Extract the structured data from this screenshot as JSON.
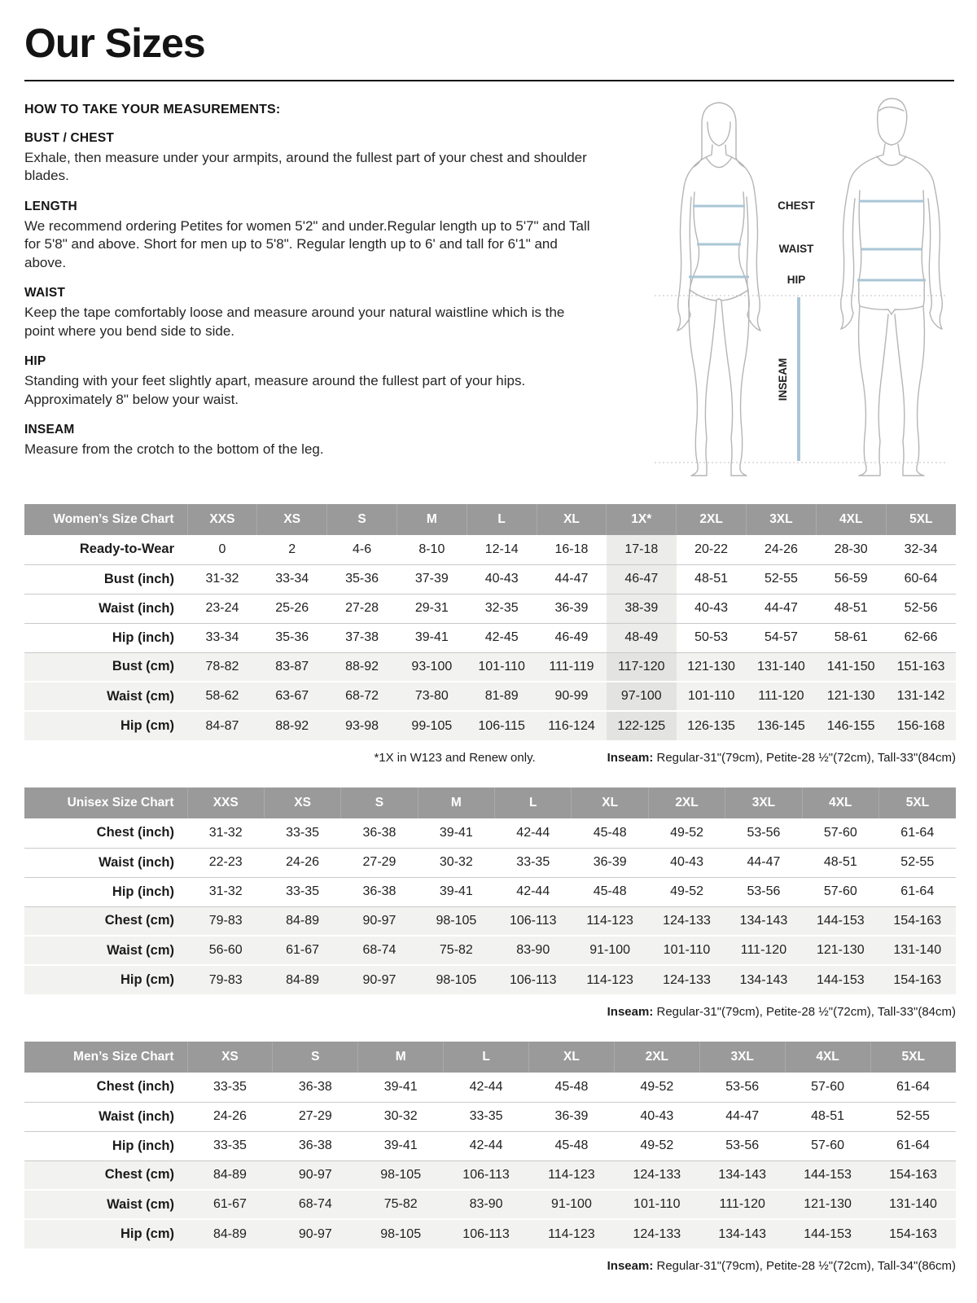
{
  "page": {
    "title": "Our Sizes"
  },
  "how_to": {
    "heading": "HOW TO TAKE YOUR MEASUREMENTS:",
    "sections": [
      {
        "heading": "BUST / CHEST",
        "body": "Exhale, then measure under your armpits, around the fullest part of your chest and shoulder blades."
      },
      {
        "heading": "LENGTH",
        "body": "We recommend ordering Petites for women 5'2\" and under.Regular length up to 5'7\" and Tall for 5'8\" and above. Short for men up to 5'8\". Regular length up to 6' and tall for 6'1\" and above."
      },
      {
        "heading": "WAIST",
        "body": "Keep the tape comfortably loose and measure around your natural waistline which is the point where you bend side to side."
      },
      {
        "heading": "HIP",
        "body": "Standing with your feet slightly apart, measure around the fullest part of your hips. Approximately 8\" below your waist."
      },
      {
        "heading": "INSEAM",
        "body": "Measure from the crotch to the bottom of the leg."
      }
    ]
  },
  "diagram": {
    "labels": {
      "chest": "CHEST",
      "waist": "WAIST",
      "hip": "HIP",
      "inseam": "INSEAM"
    }
  },
  "tables": [
    {
      "title": "Women’s Size Chart",
      "columns": [
        "XXS",
        "XS",
        "S",
        "M",
        "L",
        "XL",
        "1X*",
        "2XL",
        "3XL",
        "4XL",
        "5XL"
      ],
      "highlight_column": 6,
      "rows": [
        {
          "label": "Ready-to-Wear",
          "values": [
            "0",
            "2",
            "4-6",
            "8-10",
            "12-14",
            "16-18",
            "17-18",
            "20-22",
            "24-26",
            "28-30",
            "32-34"
          ]
        },
        {
          "label": "Bust (inch)",
          "values": [
            "31-32",
            "33-34",
            "35-36",
            "37-39",
            "40-43",
            "44-47",
            "46-47",
            "48-51",
            "52-55",
            "56-59",
            "60-64"
          ]
        },
        {
          "label": "Waist (inch)",
          "values": [
            "23-24",
            "25-26",
            "27-28",
            "29-31",
            "32-35",
            "36-39",
            "38-39",
            "40-43",
            "44-47",
            "48-51",
            "52-56"
          ]
        },
        {
          "label": "Hip (inch)",
          "values": [
            "33-34",
            "35-36",
            "37-38",
            "39-41",
            "42-45",
            "46-49",
            "48-49",
            "50-53",
            "54-57",
            "58-61",
            "62-66"
          ]
        },
        {
          "label": "Bust (cm)",
          "values": [
            "78-82",
            "83-87",
            "88-92",
            "93-100",
            "101-110",
            "111-119",
            "117-120",
            "121-130",
            "131-140",
            "141-150",
            "151-163"
          ]
        },
        {
          "label": "Waist (cm)",
          "values": [
            "58-62",
            "63-67",
            "68-72",
            "73-80",
            "81-89",
            "90-99",
            "97-100",
            "101-110",
            "111-120",
            "121-130",
            "131-142"
          ]
        },
        {
          "label": "Hip (cm)",
          "values": [
            "84-87",
            "88-92",
            "93-98",
            "99-105",
            "106-115",
            "116-124",
            "122-125",
            "126-135",
            "136-145",
            "146-155",
            "156-168"
          ]
        }
      ],
      "notes": {
        "left": "*1X in W123 and Renew only.",
        "label": "Inseam:",
        "text": " Regular-31\"(79cm), Petite-28 ½\"(72cm), Tall-33\"(84cm)"
      }
    },
    {
      "title": "Unisex Size Chart",
      "columns": [
        "XXS",
        "XS",
        "S",
        "M",
        "L",
        "XL",
        "2XL",
        "3XL",
        "4XL",
        "5XL"
      ],
      "highlight_column": -1,
      "rows": [
        {
          "label": "Chest (inch)",
          "values": [
            "31-32",
            "33-35",
            "36-38",
            "39-41",
            "42-44",
            "45-48",
            "49-52",
            "53-56",
            "57-60",
            "61-64"
          ]
        },
        {
          "label": "Waist (inch)",
          "values": [
            "22-23",
            "24-26",
            "27-29",
            "30-32",
            "33-35",
            "36-39",
            "40-43",
            "44-47",
            "48-51",
            "52-55"
          ]
        },
        {
          "label": "Hip (inch)",
          "values": [
            "31-32",
            "33-35",
            "36-38",
            "39-41",
            "42-44",
            "45-48",
            "49-52",
            "53-56",
            "57-60",
            "61-64"
          ]
        },
        {
          "label": "Chest (cm)",
          "values": [
            "79-83",
            "84-89",
            "90-97",
            "98-105",
            "106-113",
            "114-123",
            "124-133",
            "134-143",
            "144-153",
            "154-163"
          ]
        },
        {
          "label": "Waist (cm)",
          "values": [
            "56-60",
            "61-67",
            "68-74",
            "75-82",
            "83-90",
            "91-100",
            "101-110",
            "111-120",
            "121-130",
            "131-140"
          ]
        },
        {
          "label": "Hip (cm)",
          "values": [
            "79-83",
            "84-89",
            "90-97",
            "98-105",
            "106-113",
            "114-123",
            "124-133",
            "134-143",
            "144-153",
            "154-163"
          ]
        }
      ],
      "notes": {
        "left": "",
        "label": "Inseam:",
        "text": " Regular-31\"(79cm), Petite-28 ½\"(72cm), Tall-33\"(84cm)"
      }
    },
    {
      "title": "Men’s Size Chart",
      "columns": [
        "XS",
        "S",
        "M",
        "L",
        "XL",
        "2XL",
        "3XL",
        "4XL",
        "5XL"
      ],
      "highlight_column": -1,
      "rows": [
        {
          "label": "Chest (inch)",
          "values": [
            "33-35",
            "36-38",
            "39-41",
            "42-44",
            "45-48",
            "49-52",
            "53-56",
            "57-60",
            "61-64"
          ]
        },
        {
          "label": "Waist (inch)",
          "values": [
            "24-26",
            "27-29",
            "30-32",
            "33-35",
            "36-39",
            "40-43",
            "44-47",
            "48-51",
            "52-55"
          ]
        },
        {
          "label": "Hip (inch)",
          "values": [
            "33-35",
            "36-38",
            "39-41",
            "42-44",
            "45-48",
            "49-52",
            "53-56",
            "57-60",
            "61-64"
          ]
        },
        {
          "label": "Chest (cm)",
          "values": [
            "84-89",
            "90-97",
            "98-105",
            "106-113",
            "114-123",
            "124-133",
            "134-143",
            "144-153",
            "154-163"
          ]
        },
        {
          "label": "Waist (cm)",
          "values": [
            "61-67",
            "68-74",
            "75-82",
            "83-90",
            "91-100",
            "101-110",
            "111-120",
            "121-130",
            "131-140"
          ]
        },
        {
          "label": "Hip (cm)",
          "values": [
            "84-89",
            "90-97",
            "98-105",
            "106-113",
            "114-123",
            "124-133",
            "134-143",
            "144-153",
            "154-163"
          ]
        }
      ],
      "notes": {
        "left": "",
        "label": "Inseam:",
        "text": " Regular-31\"(79cm), Petite-28 ½\"(72cm), Tall-34\"(86cm)"
      }
    }
  ],
  "colors": {
    "table_header_bg": "#9A9A9A",
    "table_header_text": "#FFFFFF",
    "shaded_row_bg": "#F2F2F0",
    "highlight_column_bg": "#ECECEA",
    "highlight_on_shaded_bg": "#E3E3E1",
    "measure_line_blue": "#A9C6D6",
    "figure_outline": "#B5B5B5",
    "rule_black": "#0C0C0C"
  }
}
